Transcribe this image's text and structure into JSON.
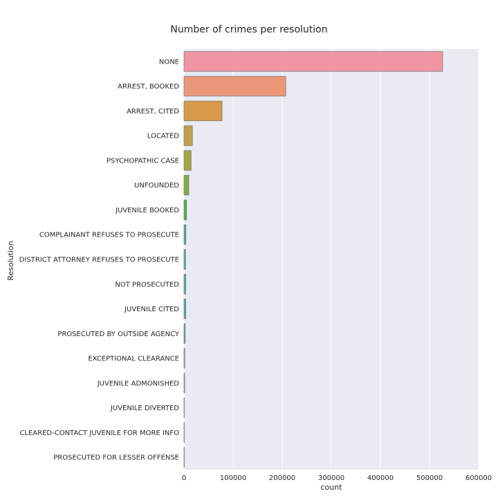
{
  "chart_data": {
    "type": "bar",
    "orientation": "horizontal",
    "title": "Number of crimes per resolution",
    "xlabel": "count",
    "ylabel": "Resolution",
    "xlim": [
      0,
      600000
    ],
    "xticks": [
      "0",
      "100000",
      "200000",
      "300000",
      "400000",
      "500000",
      "600000"
    ],
    "grid": true,
    "legend": "none",
    "categories": [
      "NONE",
      "ARREST, BOOKED",
      "ARREST, CITED",
      "LOCATED",
      "PSYCHOPATHIC CASE",
      "UNFOUNDED",
      "JUVENILE BOOKED",
      "COMPLAINANT REFUSES TO PROSECUTE",
      "DISTRICT ATTORNEY REFUSES TO PROSECUTE",
      "NOT PROSECUTED",
      "JUVENILE CITED",
      "PROSECUTED BY OUTSIDE AGENCY",
      "EXCEPTIONAL CLEARANCE",
      "JUVENILE ADMONISHED",
      "JUVENILE DIVERTED",
      "CLEARED-CONTACT JUVENILE FOR MORE INFO",
      "PROSECUTED FOR LESSER OFFENSE"
    ],
    "values": [
      526800,
      207300,
      77500,
      17200,
      14500,
      9800,
      5300,
      3900,
      3300,
      3700,
      3700,
      2500,
      1600,
      1500,
      400,
      300,
      80
    ],
    "colors": [
      "#ef95a4",
      "#ec967a",
      "#d6984a",
      "#bba248",
      "#a7a444",
      "#86ab44",
      "#46b24f",
      "#4bb08f",
      "#4ab0a1",
      "#4aafb0",
      "#4fa8c4",
      "#4f9fd3",
      "#8f9ed8",
      "#a69be0",
      "#c797e1",
      "#ea8ed9",
      "#ee8fbd"
    ],
    "background": "#eaeaf2"
  }
}
